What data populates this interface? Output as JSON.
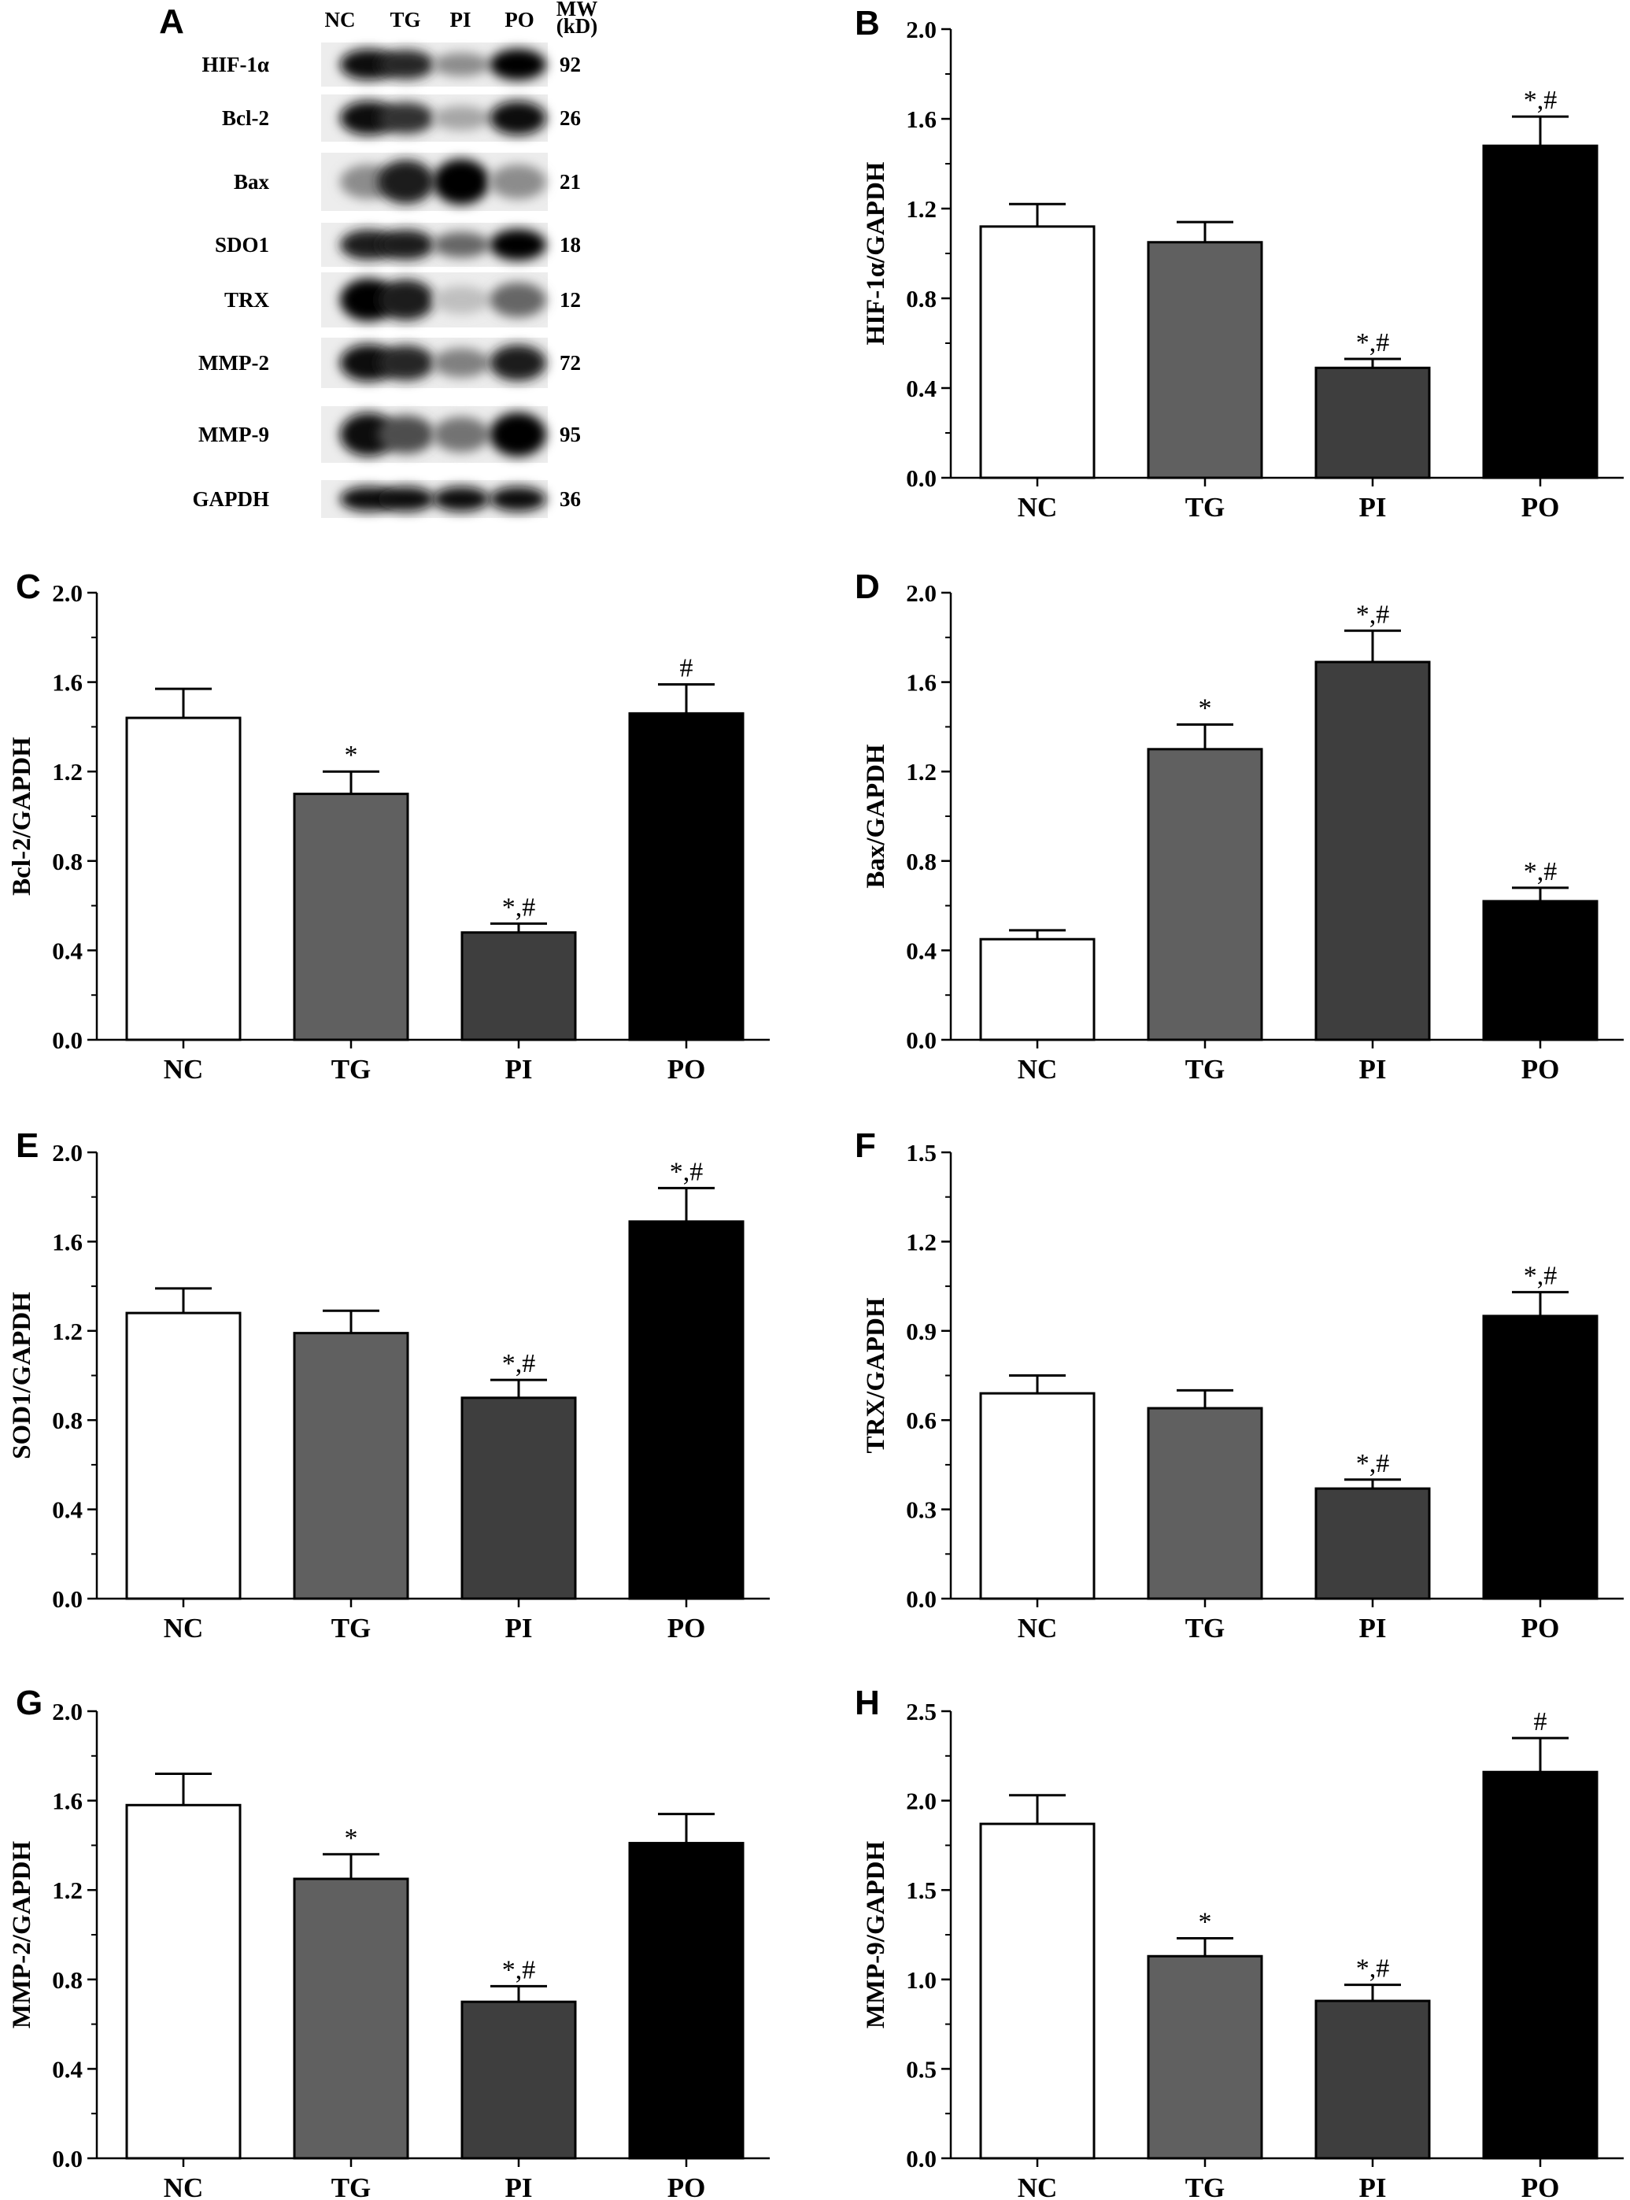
{
  "figure_panel_letter_A": "A",
  "western_blot": {
    "lanes": [
      "NC",
      "TG",
      "PI",
      "PO"
    ],
    "mw_header": [
      "MW",
      "(kD)"
    ],
    "rows": [
      {
        "protein": "HIF-1α",
        "mw": "92",
        "intensity": [
          0.95,
          0.85,
          0.45,
          1.0
        ]
      },
      {
        "protein": "Bcl-2",
        "mw": "26",
        "intensity": [
          0.95,
          0.8,
          0.35,
          0.95
        ]
      },
      {
        "protein": "Bax",
        "mw": "21",
        "intensity": [
          0.45,
          0.9,
          1.0,
          0.45
        ]
      },
      {
        "protein": "SDO1",
        "mw": "18",
        "intensity": [
          0.9,
          0.9,
          0.6,
          1.0
        ]
      },
      {
        "protein": "TRX",
        "mw": "12",
        "intensity": [
          1.0,
          0.9,
          0.25,
          0.6
        ]
      },
      {
        "protein": "MMP-2",
        "mw": "72",
        "intensity": [
          0.95,
          0.85,
          0.5,
          0.9
        ]
      },
      {
        "protein": "MMP-9",
        "mw": "95",
        "intensity": [
          0.95,
          0.7,
          0.55,
          1.0
        ]
      },
      {
        "protein": "GAPDH",
        "mw": "36",
        "intensity": [
          0.95,
          0.95,
          0.95,
          0.95
        ]
      }
    ]
  },
  "chart_data": [
    {
      "panel": "B",
      "type": "bar",
      "categories": [
        "NC",
        "TG",
        "PI",
        "PO"
      ],
      "values": [
        1.12,
        1.05,
        0.49,
        1.48
      ],
      "errors": [
        0.1,
        0.09,
        0.04,
        0.13
      ],
      "annotations": [
        "",
        "",
        "*,#",
        "*,#"
      ],
      "ylabel": "HIF-1α/GAPDH",
      "ylim": [
        0,
        2.0
      ],
      "yticks": [
        "0.0",
        "0.4",
        "0.8",
        "1.2",
        "1.6",
        "2.0"
      ],
      "bar_colors": [
        "#ffffff",
        "#606060",
        "#3e3e3e",
        "#000000"
      ]
    },
    {
      "panel": "C",
      "type": "bar",
      "categories": [
        "NC",
        "TG",
        "PI",
        "PO"
      ],
      "values": [
        1.44,
        1.1,
        0.48,
        1.46
      ],
      "errors": [
        0.13,
        0.1,
        0.04,
        0.13
      ],
      "annotations": [
        "",
        "*",
        "*,#",
        "#"
      ],
      "ylabel": "Bcl-2/GAPDH",
      "ylim": [
        0,
        2.0
      ],
      "yticks": [
        "0.0",
        "0.4",
        "0.8",
        "1.2",
        "1.6",
        "2.0"
      ],
      "bar_colors": [
        "#ffffff",
        "#606060",
        "#3e3e3e",
        "#000000"
      ]
    },
    {
      "panel": "D",
      "type": "bar",
      "categories": [
        "NC",
        "TG",
        "PI",
        "PO"
      ],
      "values": [
        0.45,
        1.3,
        1.69,
        0.62
      ],
      "errors": [
        0.04,
        0.11,
        0.14,
        0.06
      ],
      "annotations": [
        "",
        "*",
        "*,#",
        "*,#"
      ],
      "ylabel": "Bax/GAPDH",
      "ylim": [
        0,
        2.0
      ],
      "yticks": [
        "0.0",
        "0.4",
        "0.8",
        "1.2",
        "1.6",
        "2.0"
      ],
      "bar_colors": [
        "#ffffff",
        "#606060",
        "#3e3e3e",
        "#000000"
      ]
    },
    {
      "panel": "E",
      "type": "bar",
      "categories": [
        "NC",
        "TG",
        "PI",
        "PO"
      ],
      "values": [
        1.28,
        1.19,
        0.9,
        1.69
      ],
      "errors": [
        0.11,
        0.1,
        0.08,
        0.15
      ],
      "annotations": [
        "",
        "",
        "*,#",
        "*,#"
      ],
      "ylabel": "SOD1/GAPDH",
      "ylim": [
        0,
        2.0
      ],
      "yticks": [
        "0.0",
        "0.4",
        "0.8",
        "1.2",
        "1.6",
        "2.0"
      ],
      "bar_colors": [
        "#ffffff",
        "#606060",
        "#3e3e3e",
        "#000000"
      ]
    },
    {
      "panel": "F",
      "type": "bar",
      "categories": [
        "NC",
        "TG",
        "PI",
        "PO"
      ],
      "values": [
        0.69,
        0.64,
        0.37,
        0.95
      ],
      "errors": [
        0.06,
        0.06,
        0.03,
        0.08
      ],
      "annotations": [
        "",
        "",
        "*,#",
        "*,#"
      ],
      "ylabel": "TRX/GAPDH",
      "ylim": [
        0,
        1.5
      ],
      "yticks": [
        "0.0",
        "0.3",
        "0.6",
        "0.9",
        "1.2",
        "1.5"
      ],
      "bar_colors": [
        "#ffffff",
        "#606060",
        "#3e3e3e",
        "#000000"
      ]
    },
    {
      "panel": "G",
      "type": "bar",
      "categories": [
        "NC",
        "TG",
        "PI",
        "PO"
      ],
      "values": [
        1.58,
        1.25,
        0.7,
        1.41
      ],
      "errors": [
        0.14,
        0.11,
        0.07,
        0.13
      ],
      "annotations": [
        "",
        "*",
        "*,#",
        ""
      ],
      "ylabel": "MMP-2/GAPDH",
      "ylim": [
        0,
        2.0
      ],
      "yticks": [
        "0.0",
        "0.4",
        "0.8",
        "1.2",
        "1.6",
        "2.0"
      ],
      "bar_colors": [
        "#ffffff",
        "#606060",
        "#3e3e3e",
        "#000000"
      ]
    },
    {
      "panel": "H",
      "type": "bar",
      "categories": [
        "NC",
        "TG",
        "PI",
        "PO"
      ],
      "values": [
        1.87,
        1.13,
        0.88,
        2.16
      ],
      "errors": [
        0.16,
        0.1,
        0.09,
        0.19
      ],
      "annotations": [
        "",
        "*",
        "*,#",
        "#"
      ],
      "ylabel": "MMP-9/GAPDH",
      "ylim": [
        0,
        2.5
      ],
      "yticks": [
        "0.0",
        "0.5",
        "1.0",
        "1.5",
        "2.0",
        "2.5"
      ],
      "bar_colors": [
        "#ffffff",
        "#606060",
        "#3e3e3e",
        "#000000"
      ]
    }
  ]
}
